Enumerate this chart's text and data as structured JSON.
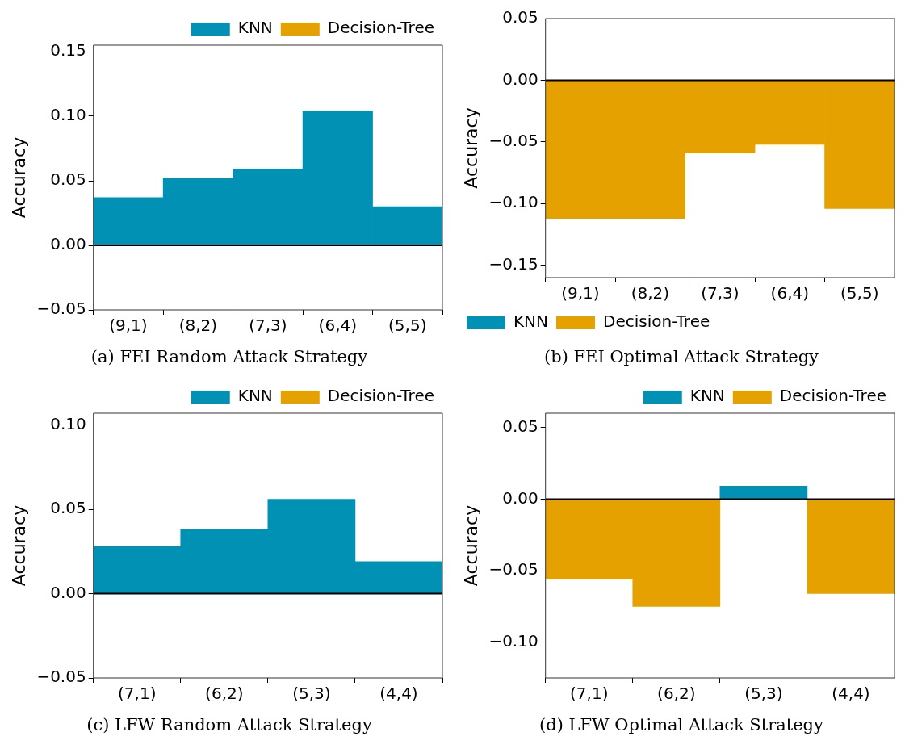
{
  "chart_data": [
    {
      "type": "bar",
      "title": "(a) FEI Random Attack Strategy",
      "ylabel": "Accuracy",
      "categories": [
        "(9,1)",
        "(8,2)",
        "(7,3)",
        "(6,4)",
        "(5,5)"
      ],
      "series": [
        {
          "name": "KNN",
          "color": "#0091b4",
          "values": [
            0.037,
            0.052,
            0.059,
            0.104,
            0.03
          ]
        },
        {
          "name": "Decision-Tree",
          "color": "#e4a100",
          "values": [
            null,
            null,
            null,
            null,
            null
          ]
        }
      ],
      "ylim": [
        -0.05,
        0.155
      ],
      "yticks": [
        {
          "value": -0.05,
          "label": "−0.05"
        },
        {
          "value": 0,
          "label": "0.00"
        },
        {
          "value": 0.05,
          "label": "0.05"
        },
        {
          "value": 0.1,
          "label": "0.10"
        },
        {
          "value": 0.15,
          "label": "0.15"
        }
      ],
      "ref_lines": [
        {
          "axis": "y",
          "value": 0,
          "color": "#000000"
        }
      ],
      "legend": "top right"
    },
    {
      "type": "bar",
      "title": "(b) FEI Optimal Attack Strategy",
      "ylabel": "Accuracy",
      "categories": [
        "(9,1)",
        "(8,2)",
        "(7,3)",
        "(6,4)",
        "(5,5)"
      ],
      "series": [
        {
          "name": "KNN",
          "color": "#0091b4",
          "values": [
            null,
            null,
            null,
            null,
            null
          ]
        },
        {
          "name": "Decision-Tree",
          "color": "#e4a100",
          "values": [
            -0.112,
            -0.112,
            -0.059,
            -0.052,
            -0.104
          ]
        }
      ],
      "ylim": [
        -0.16,
        0.05
      ],
      "yticks": [
        {
          "value": -0.15,
          "label": "−0.15"
        },
        {
          "value": -0.1,
          "label": "−0.10"
        },
        {
          "value": -0.05,
          "label": "−0.05"
        },
        {
          "value": 0,
          "label": "0.00"
        },
        {
          "value": 0.05,
          "label": "0.05"
        }
      ],
      "ref_lines": [
        {
          "axis": "y",
          "value": 0,
          "color": "#000000"
        }
      ],
      "legend": "bottom left"
    },
    {
      "type": "bar",
      "title": "(c) LFW Random Attack Strategy",
      "ylabel": "Accuracy",
      "categories": [
        "(7,1)",
        "(6,2)",
        "(5,3)",
        "(4,4)"
      ],
      "series": [
        {
          "name": "KNN",
          "color": "#0091b4",
          "values": [
            0.028,
            0.038,
            0.056,
            0.019
          ]
        },
        {
          "name": "Decision-Tree",
          "color": "#e4a100",
          "values": [
            null,
            null,
            null,
            null
          ]
        }
      ],
      "ylim": [
        -0.05,
        0.107
      ],
      "yticks": [
        {
          "value": -0.05,
          "label": "−0.05"
        },
        {
          "value": 0,
          "label": "0.00"
        },
        {
          "value": 0.05,
          "label": "0.05"
        },
        {
          "value": 0.1,
          "label": "0.10"
        }
      ],
      "ref_lines": [
        {
          "axis": "y",
          "value": 0,
          "color": "#000000"
        }
      ],
      "legend": "top right"
    },
    {
      "type": "bar",
      "title": "(d) LFW Optimal Attack Strategy",
      "ylabel": "Accuracy",
      "categories": [
        "(7,1)",
        "(6,2)",
        "(5,3)",
        "(4,4)"
      ],
      "series": [
        {
          "name": "KNN",
          "color": "#0091b4",
          "values": [
            null,
            null,
            0.009,
            null
          ]
        },
        {
          "name": "Decision-Tree",
          "color": "#e4a100",
          "values": [
            -0.056,
            -0.075,
            null,
            -0.066
          ]
        }
      ],
      "ylim": [
        -0.125,
        0.06
      ],
      "yticks": [
        {
          "value": -0.1,
          "label": "−0.10"
        },
        {
          "value": -0.05,
          "label": "−0.05"
        },
        {
          "value": 0,
          "label": "0.00"
        },
        {
          "value": 0.05,
          "label": "0.05"
        }
      ],
      "ref_lines": [
        {
          "axis": "y",
          "value": 0,
          "color": "#000000"
        }
      ],
      "legend": "top right"
    }
  ]
}
